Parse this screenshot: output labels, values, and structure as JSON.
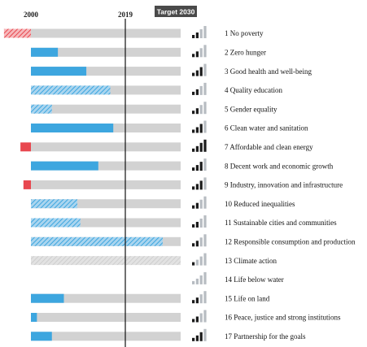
{
  "chart_data": {
    "type": "bar",
    "axis_labels": {
      "start": "2000",
      "mid": "2019",
      "target": "Target 2030"
    },
    "xlim": [
      2000,
      2030
    ],
    "colors": {
      "track": "#d2d2d2",
      "progress": "#3da6df",
      "regress": "#e8474f",
      "hatch_bg": "#aad5ef",
      "hatch_line": "#3da6df",
      "trend_dark": "#1c1c1c",
      "trend_light": "#b7bcc2",
      "target_box": "#4a4a4a"
    },
    "goals": [
      {
        "label": "1 No poverty",
        "value": -0.18,
        "style": "hatch-regress",
        "trend": 2
      },
      {
        "label": "2 Zero hunger",
        "value": 0.18,
        "style": "solid",
        "trend": 2
      },
      {
        "label": "3 Good health and well-being",
        "value": 0.37,
        "style": "solid",
        "trend": 3
      },
      {
        "label": "4 Quality education",
        "value": 0.53,
        "style": "hatch",
        "trend": 2
      },
      {
        "label": "5 Gender equality",
        "value": 0.14,
        "style": "hatch",
        "trend": 2
      },
      {
        "label": "6 Clean water and sanitation",
        "value": 0.55,
        "style": "solid",
        "trend": 3
      },
      {
        "label": "7 Affordable and clean energy",
        "value": -0.07,
        "style": "solid-regress",
        "trend": 4
      },
      {
        "label": "8 Decent work and economic growth",
        "value": 0.45,
        "style": "solid",
        "trend": 3
      },
      {
        "label": "9 Industry, innovation and infrastructure",
        "value": -0.05,
        "style": "solid-regress",
        "trend": 3
      },
      {
        "label": "10 Reduced inequalities",
        "value": 0.31,
        "style": "hatch",
        "trend": 2
      },
      {
        "label": "11 Sustainable cities and communities",
        "value": 0.33,
        "style": "hatch",
        "trend": 2
      },
      {
        "label": "12 Responsible consumption and production",
        "value": 0.88,
        "style": "hatch",
        "trend": 2
      },
      {
        "label": "13 Climate action",
        "value": 0,
        "style": "hatch-track",
        "trend": 1
      },
      {
        "label": "14 Life below water",
        "value": 0,
        "style": "none",
        "trend": 0
      },
      {
        "label": "15 Life on land",
        "value": 0.22,
        "style": "solid",
        "trend": 2
      },
      {
        "label": "16 Peace, justice and strong institutions",
        "value": 0.04,
        "style": "solid",
        "trend": 2
      },
      {
        "label": "17 Partnership for the goals",
        "value": 0.14,
        "style": "solid",
        "trend": 3
      }
    ]
  }
}
